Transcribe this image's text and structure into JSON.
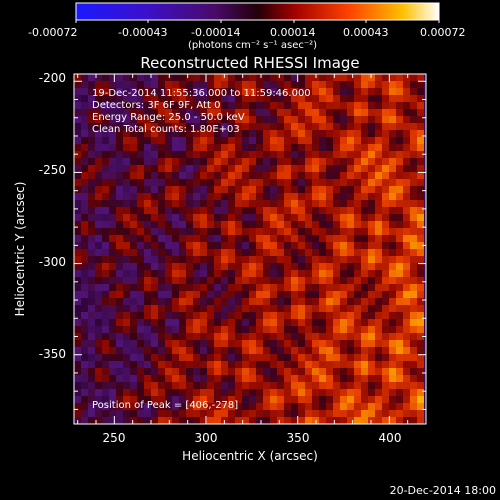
{
  "colorbar": {
    "ticks": [
      "-0.00072",
      "-0.00043",
      "-0.00014",
      "0.00014",
      "0.00043",
      "0.00072"
    ],
    "units": "(photons cm⁻² s⁻¹ asec⁻²)"
  },
  "title": "Reconstructed RHESSI Image",
  "info": {
    "time_range": "19-Dec-2014 11:55:36.000 to 11:59:46.000",
    "detectors": "Detectors: 3F 6F 9F, Att 0",
    "energy": "Energy Range: 25.0 - 50.0 keV",
    "clean": "Clean    Total counts: 1.80E+03",
    "peak": "Position of Peak = [406,-278]"
  },
  "xaxis": {
    "label": "Heliocentric X (arcsec)",
    "ticks": [
      "250",
      "300",
      "350",
      "400"
    ],
    "values": [
      250,
      300,
      350,
      400
    ],
    "range": [
      228,
      420
    ]
  },
  "yaxis": {
    "label": "Heliocentric Y (arcsec)",
    "ticks": [
      "-200",
      "-250",
      "-300",
      "-350"
    ],
    "values": [
      -200,
      -250,
      -300,
      -350
    ],
    "range": [
      -388,
      -196
    ]
  },
  "timestamp": "20-Dec-2014 18:00"
}
